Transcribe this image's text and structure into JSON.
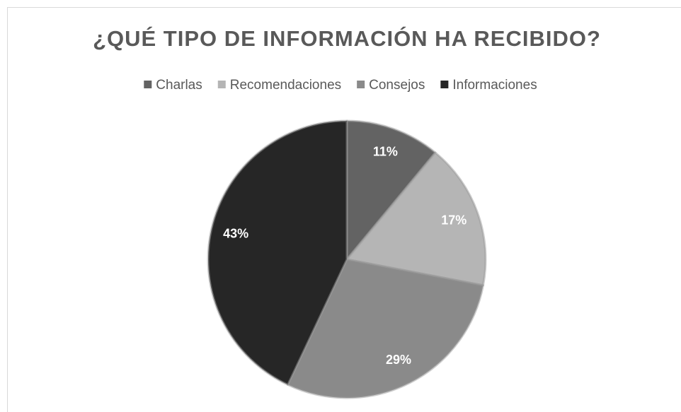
{
  "chart_data": {
    "type": "pie",
    "title": "¿QUÉ TIPO DE INFORMACIÓN HA RECIBIDO?",
    "categories": [
      "Charlas",
      "Recomendaciones",
      "Consejos",
      "Informaciones"
    ],
    "values": [
      11,
      17,
      29,
      43
    ],
    "value_labels": [
      "11%",
      "17%",
      "29%",
      "43%"
    ],
    "colors": [
      "#636363",
      "#b5b5b5",
      "#8a8a8a",
      "#262626"
    ],
    "legend": "top"
  }
}
